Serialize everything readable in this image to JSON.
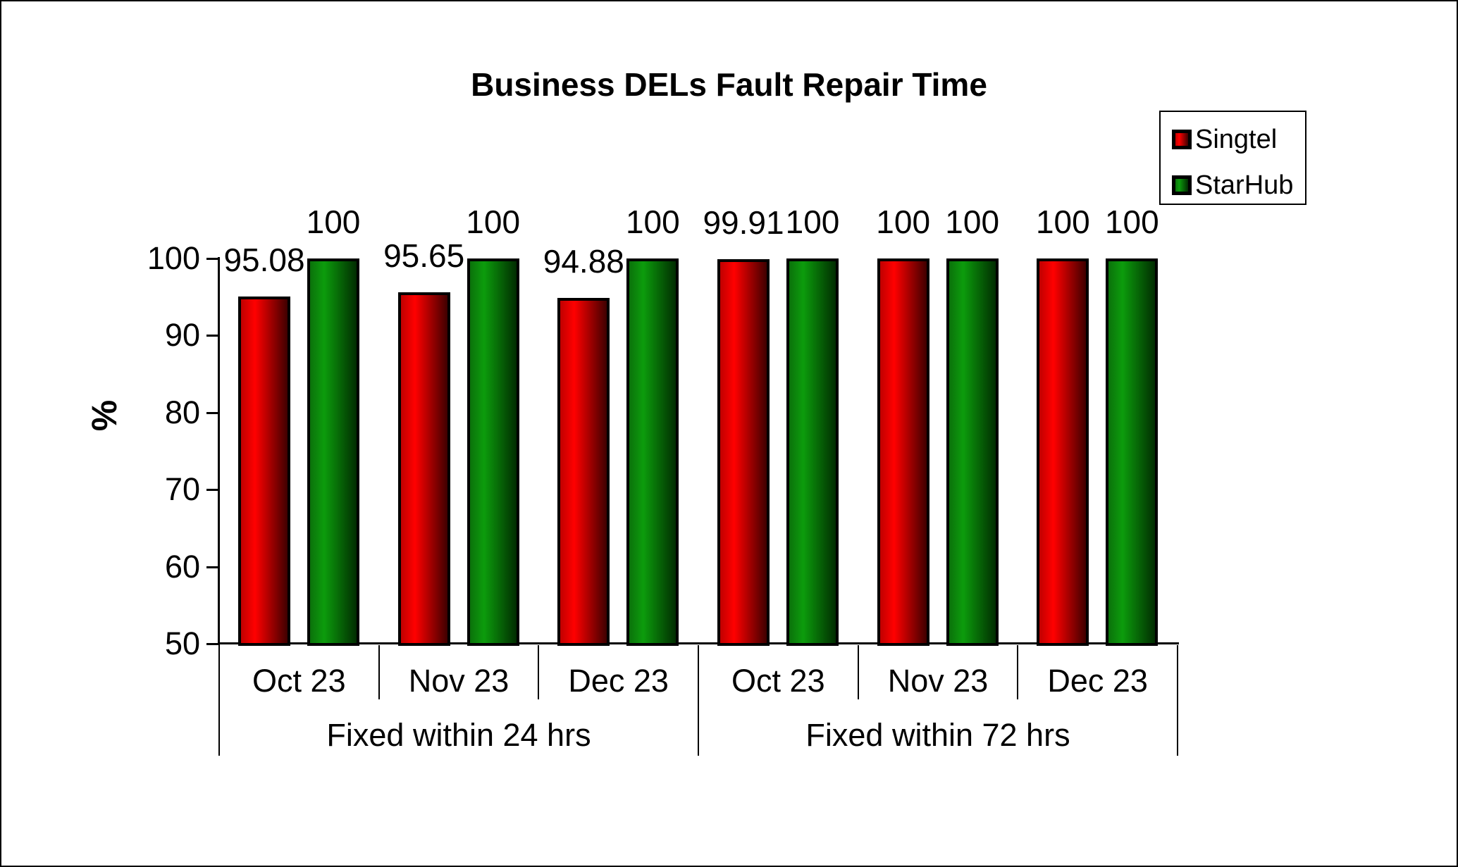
{
  "title": "Business DELs Fault Repair Time",
  "y_axis_title": "%",
  "chart_data": {
    "type": "bar",
    "title": "Business DELs Fault Repair Time",
    "xlabel": "",
    "ylabel": "%",
    "ylim": [
      50,
      100
    ],
    "yticks": [
      100,
      90,
      80,
      70,
      60,
      50
    ],
    "grid": false,
    "legend_position": "top-right",
    "groups": [
      "Fixed within 24 hrs",
      "Fixed within 72 hrs"
    ],
    "categories": [
      "Oct 23",
      "Nov 23",
      "Dec 23",
      "Oct 23",
      "Nov 23",
      "Dec 23"
    ],
    "series": [
      {
        "name": "Singtel",
        "color": "#ff0000",
        "gradient": [
          "#c00000",
          "#ff0000",
          "#3f0000"
        ],
        "values": [
          95.08,
          95.65,
          94.88,
          99.91,
          100,
          100
        ],
        "labels": [
          "95.08",
          "95.65",
          "94.88",
          "99.91",
          "100",
          "100"
        ]
      },
      {
        "name": "StarHub",
        "color": "#008000",
        "gradient": [
          "#0b720b",
          "#0c9c0c",
          "#012d01"
        ],
        "values": [
          100,
          100,
          100,
          100,
          100,
          100
        ],
        "labels": [
          "100",
          "100",
          "100",
          "100",
          "100",
          "100"
        ]
      }
    ]
  },
  "colors": {
    "axis": "#000000",
    "background": "#ffffff",
    "text": "#000000"
  }
}
